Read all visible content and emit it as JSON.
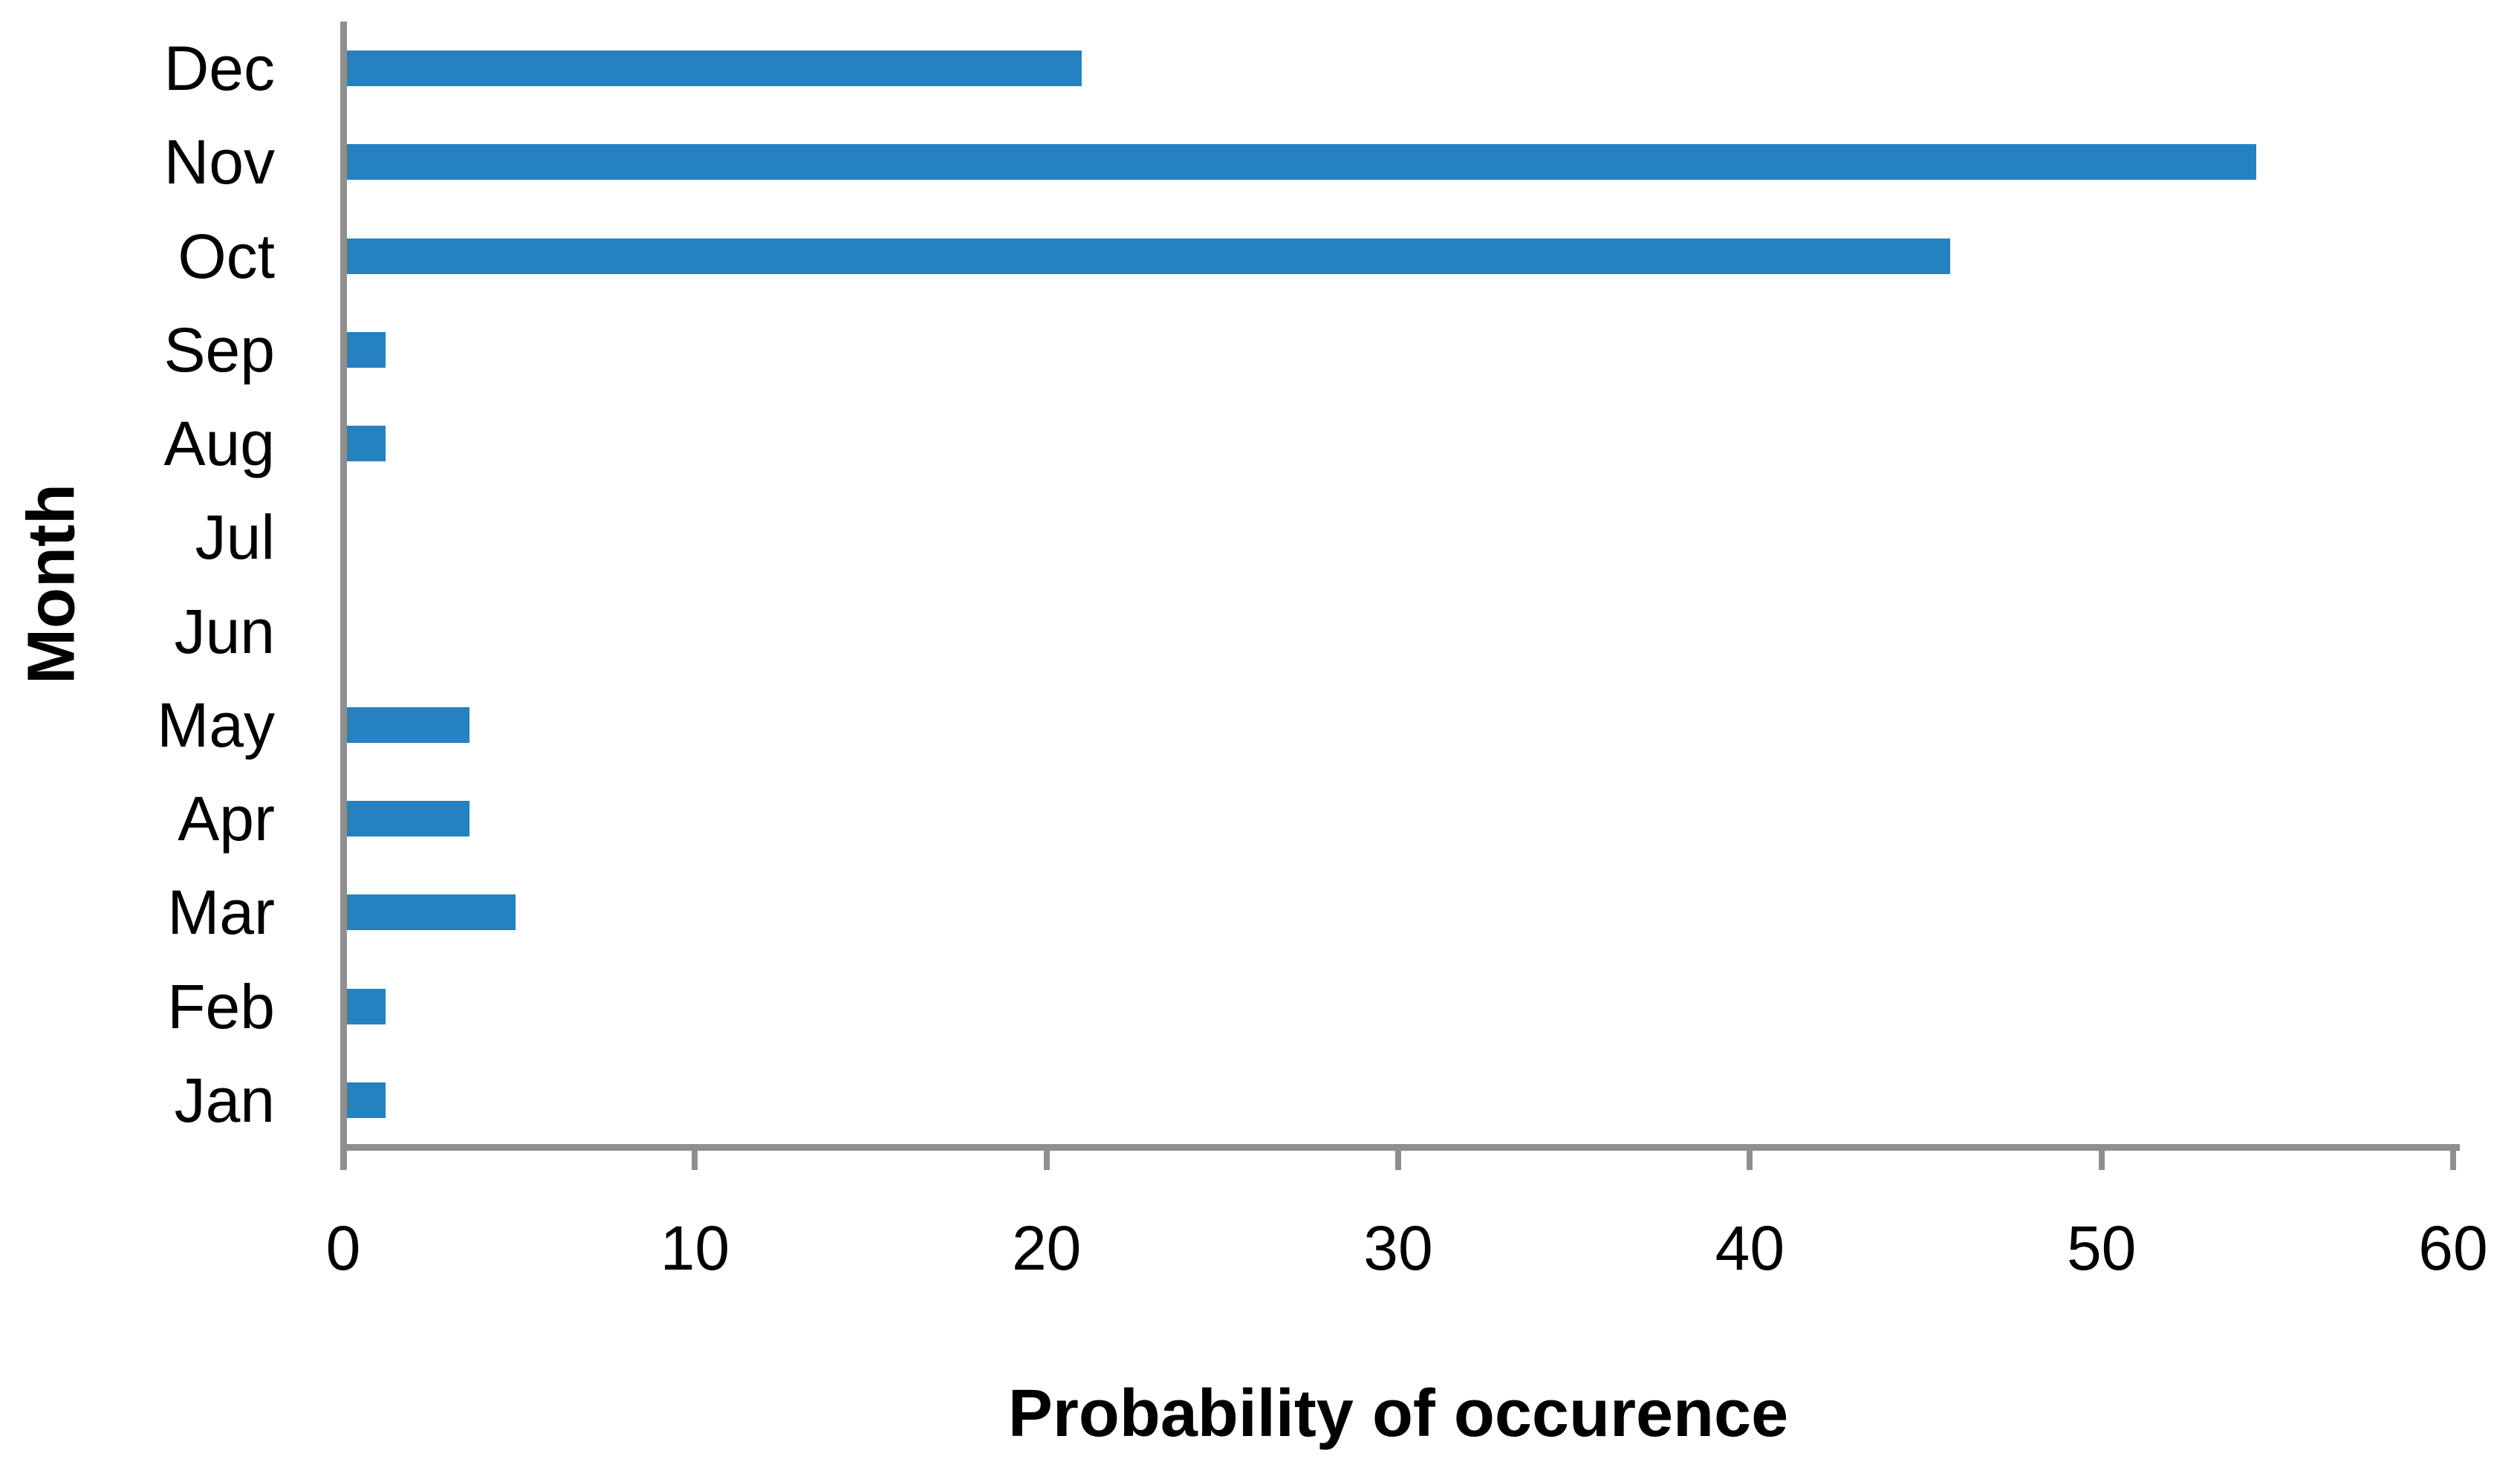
{
  "chart_data": {
    "type": "bar",
    "orientation": "horizontal",
    "title": "",
    "xlabel": "Probability of occurence",
    "ylabel": "Month",
    "xlim": [
      0,
      60
    ],
    "x_ticks": [
      0,
      10,
      20,
      30,
      40,
      50,
      60
    ],
    "grid": false,
    "legend": false,
    "background_color": "#ffffff",
    "bar_color": "#2681c0",
    "axis_color": "#8f8f8f",
    "text_color": "#000000",
    "categories": [
      "Dec",
      "Nov",
      "Oct",
      "Sep",
      "Aug",
      "Jul",
      "Jun",
      "May",
      "Apr",
      "Mar",
      "Feb",
      "Jan"
    ],
    "values": [
      21,
      54.4,
      45.7,
      1.2,
      1.2,
      0,
      0,
      3.6,
      3.6,
      4.9,
      1.2,
      1.2
    ]
  }
}
